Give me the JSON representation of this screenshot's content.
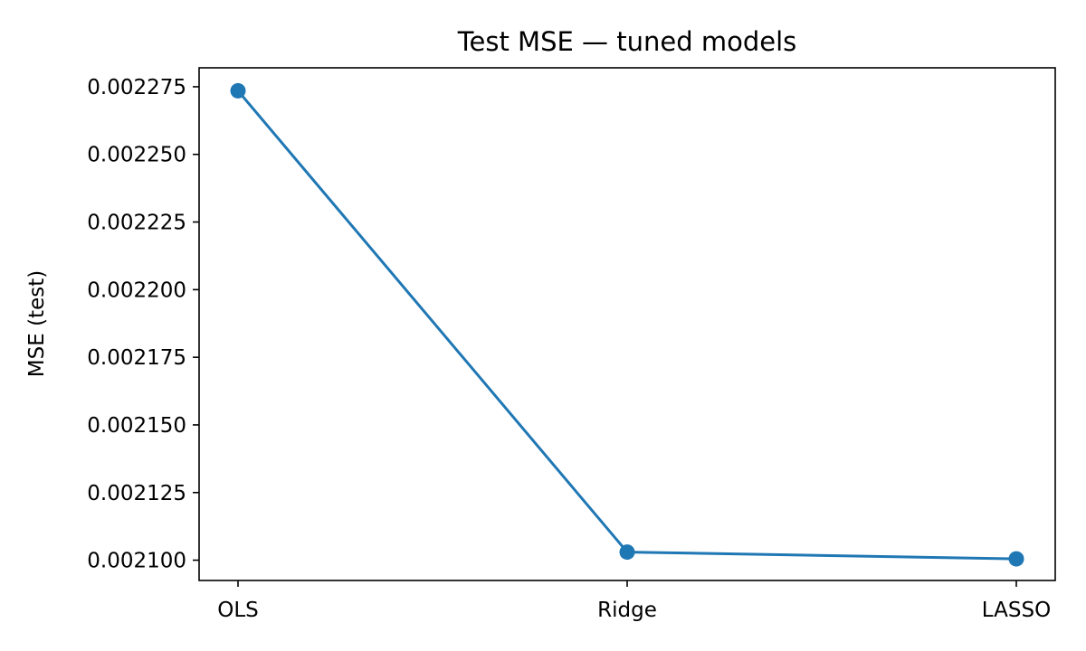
{
  "chart_data": {
    "type": "line",
    "title": "Test MSE — tuned models",
    "xlabel": "",
    "ylabel": "MSE (test)",
    "categories": [
      "OLS",
      "Ridge",
      "LASSO"
    ],
    "series": [
      {
        "values": [
          0.0022735,
          0.002103,
          0.0021005
        ],
        "color": "#1f77b4",
        "marker": "circle"
      }
    ],
    "yticks": [
      0.0021,
      0.002125,
      0.00215,
      0.002175,
      0.0022,
      0.002225,
      0.00225,
      0.002275
    ],
    "ytick_labels": [
      "0.002100",
      "0.002125",
      "0.002150",
      "0.002175",
      "0.002200",
      "0.002225",
      "0.002250",
      "0.002275"
    ],
    "ylim": [
      0.0020925,
      0.002282
    ],
    "grid": false,
    "legend": false
  }
}
